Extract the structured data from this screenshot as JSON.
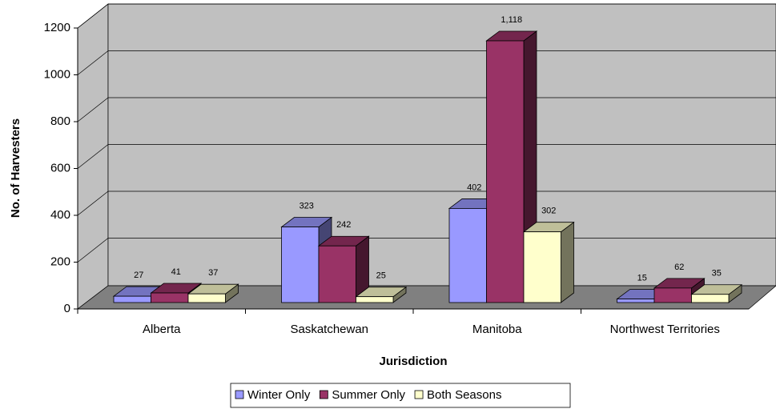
{
  "chart_data": {
    "type": "bar3d",
    "y_axis_label": "No. of Harvesters",
    "x_axis_label": "Jurisdiction",
    "categories": [
      "Alberta",
      "Saskatchewan",
      "Manitoba",
      "Northwest Territories"
    ],
    "series": [
      {
        "name": "Winter Only",
        "color": "#9999ff",
        "values": [
          27,
          323,
          402,
          15
        ]
      },
      {
        "name": "Summer Only",
        "color": "#993366",
        "values": [
          41,
          242,
          1118,
          62
        ],
        "value_labels": [
          "41",
          "242",
          "1,118",
          "62"
        ]
      },
      {
        "name": "Both Seasons",
        "color": "#ffffcc",
        "values": [
          37,
          25,
          302,
          35
        ]
      }
    ],
    "ylim": [
      0,
      1200
    ],
    "yticks": [
      0,
      200,
      400,
      600,
      800,
      1000,
      1200
    ],
    "grid": true,
    "legend": "bottom"
  }
}
